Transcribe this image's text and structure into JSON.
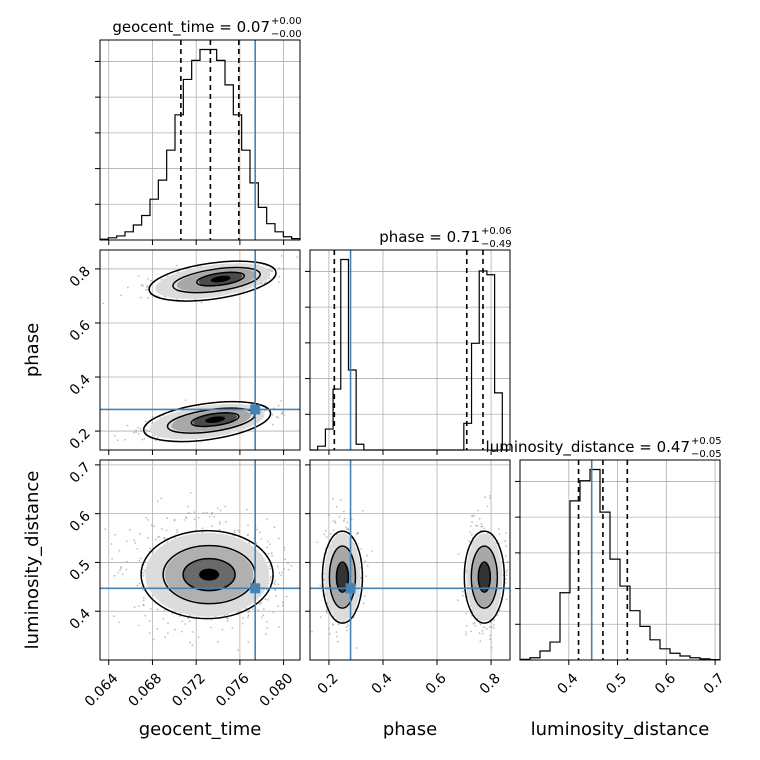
{
  "chart_data": {
    "type": "corner",
    "parameters": [
      "geocent_time",
      "phase",
      "luminosity_distance"
    ],
    "truth_color": "#4682b4",
    "truths": {
      "geocent_time": 0.0774,
      "phase": 0.28,
      "luminosity_distance": 0.447
    },
    "axis_ranges": {
      "geocent_time": [
        0.0632,
        0.0815
      ],
      "phase": [
        0.13,
        0.87
      ],
      "luminosity_distance": [
        0.3,
        0.71
      ]
    },
    "ticks": {
      "geocent_time": {
        "values": [
          0.064,
          0.068,
          0.072,
          0.076,
          0.08
        ],
        "labels": [
          "0.064",
          "0.068",
          "0.072",
          "0.076",
          "0.080"
        ]
      },
      "phase": {
        "values": [
          0.2,
          0.4,
          0.6,
          0.8
        ],
        "labels": [
          "0.2",
          "0.4",
          "0.6",
          "0.8"
        ]
      },
      "luminosity_distance": {
        "values": [
          0.4,
          0.5,
          0.6,
          0.7
        ],
        "labels": [
          "0.4",
          "0.5",
          "0.6",
          "0.7"
        ]
      }
    },
    "titles": [
      {
        "param": "geocent_time",
        "main": "geocent_time = 0.07",
        "sup": "+0.00",
        "sub": "−0.00"
      },
      {
        "param": "phase",
        "main": "phase = 0.71",
        "sup": "+0.06",
        "sub": "−0.49"
      },
      {
        "param": "luminosity_distance",
        "main": "luminosity_distance = 0.47",
        "sup": "+0.05",
        "sub": "−0.05"
      }
    ],
    "quantiles": {
      "geocent_time": [
        0.0706,
        0.0733,
        0.0759
      ],
      "phase": [
        0.22,
        0.71,
        0.77
      ],
      "luminosity_distance": [
        0.42,
        0.47,
        0.52
      ]
    },
    "histograms": {
      "geocent_time": {
        "edges_range": [
          0.0632,
          0.0815
        ],
        "counts": [
          0.3,
          0.8,
          1.5,
          3,
          5.5,
          9,
          15,
          22,
          33,
          46,
          59,
          66,
          70,
          70,
          66,
          57,
          46,
          33,
          21,
          12,
          6,
          3,
          1.2,
          0.5
        ]
      },
      "phase": {
        "edges_range": [
          0.13,
          0.87
        ],
        "counts": [
          0,
          2,
          11,
          32,
          100,
          42,
          3,
          0,
          0,
          0,
          0,
          0,
          0,
          0,
          0,
          0,
          0,
          0,
          0,
          0,
          14,
          56,
          94,
          92,
          30,
          0
        ]
      },
      "luminosity_distance": {
        "edges_range": [
          0.3,
          0.71
        ],
        "counts": [
          0.3,
          1,
          4,
          8,
          30,
          71,
          80,
          85,
          66,
          45,
          33,
          22,
          15,
          9,
          5,
          3,
          1.8,
          1,
          0.5,
          0.2
        ]
      }
    },
    "xlabel_bottom": [
      "geocent_time",
      "phase",
      "luminosity_distance"
    ],
    "ylabel_left": [
      "phase",
      "luminosity_distance"
    ],
    "grid": true
  }
}
